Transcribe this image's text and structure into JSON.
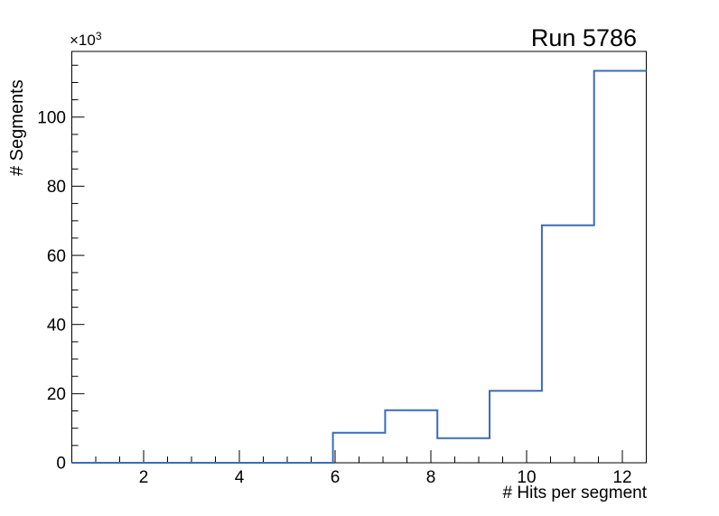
{
  "page": {
    "background_color": "#ffffff",
    "foreground_color": "#000000"
  },
  "header": {
    "title": "Run 5786"
  },
  "chart_data": {
    "type": "histogram-step",
    "title": "Run 5786",
    "xlabel": "# Hits per segment",
    "ylabel": "# Segments",
    "y_multiplier_base": "×10",
    "y_multiplier_exp": "3",
    "x_range": [
      0.5,
      12.5
    ],
    "y_range": [
      0,
      119000
    ],
    "bin_edges": [
      0.5,
      1.591,
      2.682,
      3.773,
      4.864,
      5.955,
      7.045,
      8.136,
      9.227,
      10.318,
      11.409,
      12.5
    ],
    "bin_counts": [
      0,
      0,
      0,
      0,
      0,
      8700,
      15200,
      7100,
      20800,
      68700,
      113400
    ],
    "x_major_ticks": [
      2,
      4,
      6,
      8,
      10,
      12
    ],
    "x_major_tick_labels": [
      "2",
      "4",
      "6",
      "8",
      "10",
      "12"
    ],
    "x_minor_step": 0.5,
    "y_major_ticks": [
      0,
      20000,
      40000,
      60000,
      80000,
      100000
    ],
    "y_major_tick_labels": [
      "0",
      "20",
      "40",
      "60",
      "80",
      "100"
    ],
    "y_minor_step": 5000,
    "legend": null,
    "grid": false,
    "line_color": "#3b6cba",
    "axis_color": "#000000"
  }
}
